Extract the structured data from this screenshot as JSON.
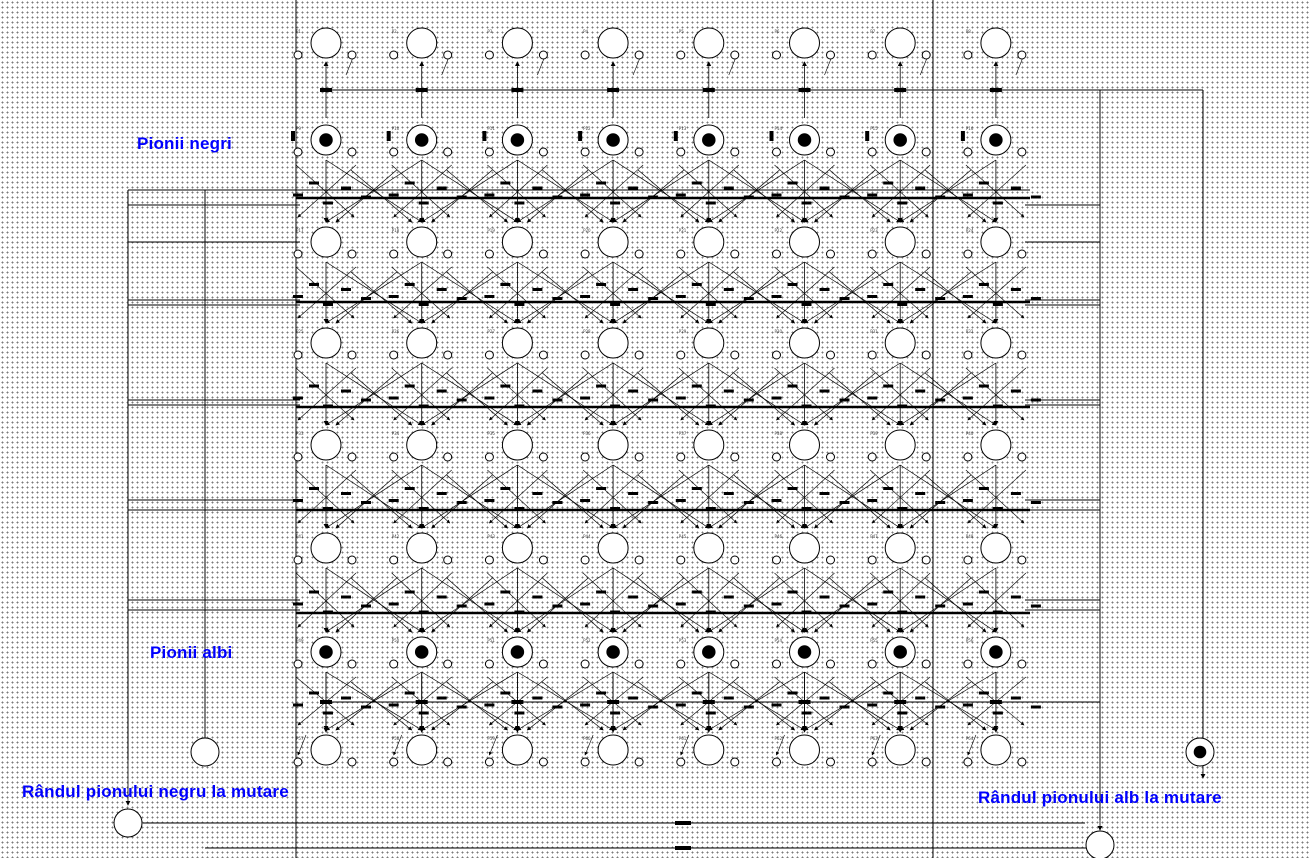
{
  "labels": {
    "black_pawns": "Pionii negri",
    "white_pawns": "Pionii albi",
    "black_turn": "Rândul pionului negru la mutare",
    "white_turn": "Rândul pionului alb la mutare"
  },
  "net": {
    "columns": 8,
    "board_rows": 6,
    "marked_rows": [
      "Pionii negri",
      "Pionii albi"
    ],
    "turn_places": {
      "black_turn_marked": false,
      "white_turn_marked": true
    }
  },
  "colors": {
    "label": "#0000ff",
    "arc": "#000000",
    "place_fill": "#ffffff",
    "token": "#000000",
    "grid_dots": "#7a7a7a"
  }
}
